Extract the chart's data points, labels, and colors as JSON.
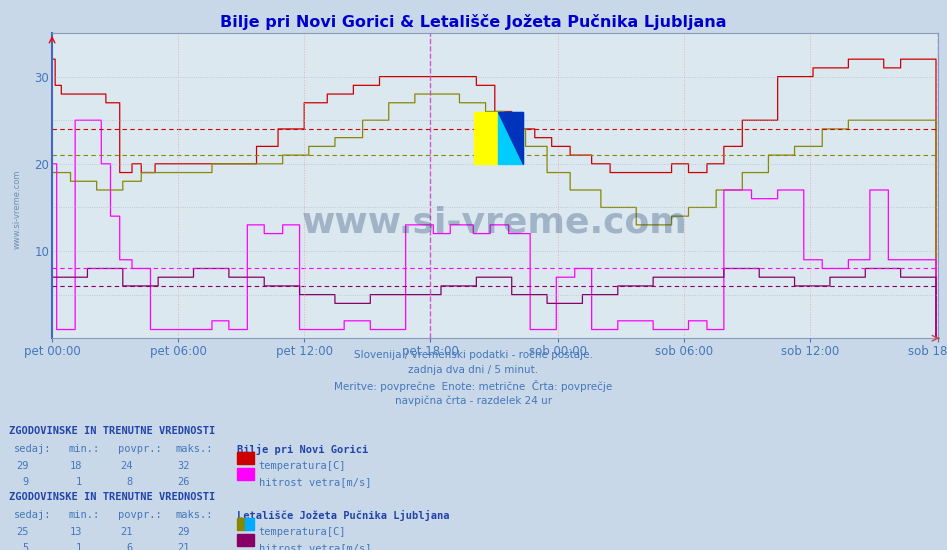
{
  "title": "Bilje pri Novi Gorici & Letališče Jožeta Pučnika Ljubljana",
  "title_color": "#0000cc",
  "bg_color": "#c8d8e8",
  "plot_bg_color": "#dce8f0",
  "grid_color_v": "#ee9999",
  "grid_color_h": "#aaaacc",
  "watermark": "www.si-vreme.com",
  "watermark_color": "#1a3a6a",
  "watermark_side": "www.si-vreme.com",
  "watermark_side_color": "#6688aa",
  "subtitle_lines": [
    "Slovenija / vremenski podatki - ročne postaje.",
    "zadnja dva dni / 5 minut.",
    "Meritve: povprečne  Enote: metrične  Črta: povprečje",
    "navpična črta - razdelek 24 ur"
  ],
  "subtitle_color": "#4477bb",
  "x_labels": [
    "pet 00:00",
    "pet 06:00",
    "pet 12:00",
    "pet 18:00",
    "sob 00:00",
    "sob 06:00",
    "sob 12:00",
    "sob 18:00"
  ],
  "x_label_color": "#4477bb",
  "ylim": [
    0,
    35
  ],
  "ytick_labels": [
    10,
    20,
    30
  ],
  "avg_lines": {
    "red_avg": 24,
    "olive_avg": 21,
    "pink_avg": 8,
    "purple_avg": 6
  },
  "vline_color": "#cc44cc",
  "series_colors": {
    "red": "#cc0000",
    "olive": "#888800",
    "pink": "#ff00ff",
    "purple": "#880066"
  },
  "stats": {
    "bilje": {
      "header": "ZGODOVINSKE IN TRENUTNE VREDNOSTI",
      "station": "Bilje pri Novi Gorici",
      "temp": {
        "sedaj": 29,
        "min": 18,
        "povpr": 24,
        "maks": 32,
        "label": "temperatura[C]",
        "color": "#cc0000"
      },
      "wind": {
        "sedaj": 9,
        "min": 1,
        "povpr": 8,
        "maks": 26,
        "label": "hitrost vetra[m/s]",
        "color": "#ff00ff"
      }
    },
    "lju": {
      "header": "ZGODOVINSKE IN TRENUTNE VREDNOSTI",
      "station": "Letališče Jožeta Pučnika Ljubljana",
      "temp": {
        "sedaj": 25,
        "min": 13,
        "povpr": 21,
        "maks": 29,
        "label": "temperatura[C]",
        "color_left": "#888800",
        "color_right": "#00aaff"
      },
      "wind": {
        "sedaj": 5,
        "min": 1,
        "povpr": 6,
        "maks": 21,
        "label": "hitrost vetra[m/s]",
        "color": "#880066"
      }
    }
  },
  "n_points": 576
}
